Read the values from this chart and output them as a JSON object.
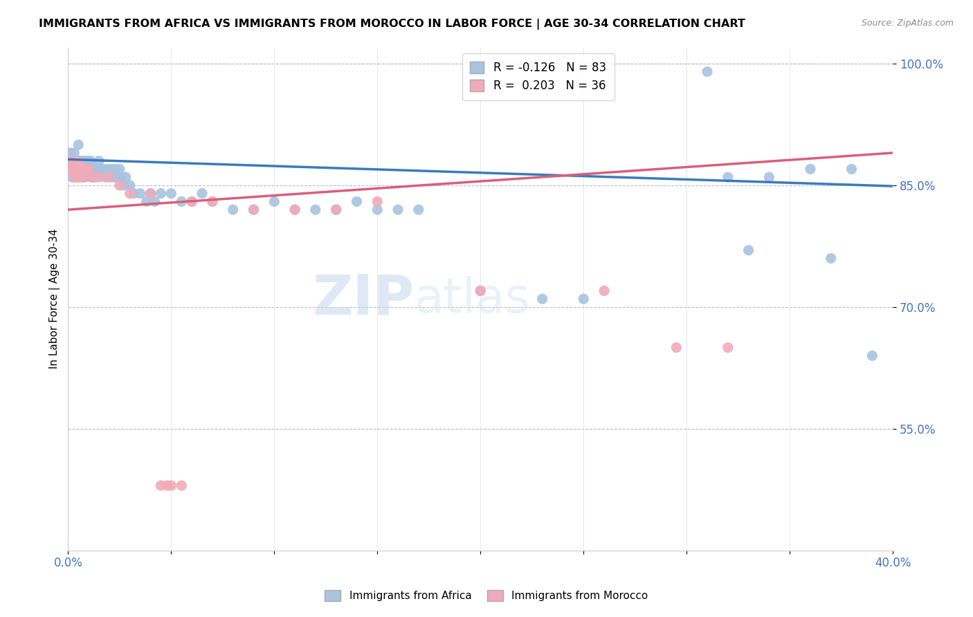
{
  "title": "IMMIGRANTS FROM AFRICA VS IMMIGRANTS FROM MOROCCO IN LABOR FORCE | AGE 30-34 CORRELATION CHART",
  "source": "Source: ZipAtlas.com",
  "ylabel": "In Labor Force | Age 30-34",
  "xlim": [
    0.0,
    0.4
  ],
  "ylim": [
    0.4,
    1.02
  ],
  "xtick_positions": [
    0.0,
    0.05,
    0.1,
    0.15,
    0.2,
    0.25,
    0.3,
    0.35,
    0.4
  ],
  "xticklabels": [
    "0.0%",
    "",
    "",
    "",
    "",
    "",
    "",
    "",
    "40.0%"
  ],
  "ytick_positions": [
    0.55,
    0.7,
    0.85,
    1.0
  ],
  "yticklabels": [
    "55.0%",
    "70.0%",
    "85.0%",
    "100.0%"
  ],
  "blue_color": "#a8c4e0",
  "pink_color": "#f2aab8",
  "blue_line_color": "#3a7abf",
  "pink_line_color": "#d95f7a",
  "legend_blue_label": "R = -0.126   N = 83",
  "legend_pink_label": "R =  0.203   N = 36",
  "watermark": "ZIPatlas",
  "africa_line": [
    0.0,
    0.4,
    0.882,
    0.849
  ],
  "morocco_line": [
    0.0,
    0.4,
    0.82,
    0.89
  ],
  "africa_x": [
    0.001,
    0.001,
    0.002,
    0.002,
    0.002,
    0.003,
    0.003,
    0.003,
    0.004,
    0.004,
    0.004,
    0.005,
    0.005,
    0.005,
    0.005,
    0.006,
    0.006,
    0.006,
    0.007,
    0.007,
    0.007,
    0.008,
    0.008,
    0.008,
    0.009,
    0.009,
    0.01,
    0.01,
    0.011,
    0.011,
    0.012,
    0.012,
    0.013,
    0.013,
    0.014,
    0.015,
    0.015,
    0.016,
    0.017,
    0.018,
    0.019,
    0.02,
    0.021,
    0.022,
    0.023,
    0.024,
    0.025,
    0.026,
    0.027,
    0.028,
    0.03,
    0.032,
    0.035,
    0.038,
    0.04,
    0.042,
    0.045,
    0.05,
    0.055,
    0.06,
    0.065,
    0.07,
    0.08,
    0.09,
    0.1,
    0.11,
    0.12,
    0.13,
    0.14,
    0.15,
    0.16,
    0.17,
    0.2,
    0.23,
    0.25,
    0.31,
    0.32,
    0.33,
    0.34,
    0.36,
    0.37,
    0.38,
    0.39
  ],
  "africa_y": [
    0.89,
    0.87,
    0.88,
    0.87,
    0.86,
    0.89,
    0.88,
    0.87,
    0.88,
    0.87,
    0.86,
    0.9,
    0.88,
    0.87,
    0.86,
    0.88,
    0.87,
    0.86,
    0.88,
    0.87,
    0.86,
    0.88,
    0.87,
    0.86,
    0.88,
    0.87,
    0.88,
    0.87,
    0.88,
    0.86,
    0.87,
    0.86,
    0.87,
    0.86,
    0.87,
    0.88,
    0.87,
    0.87,
    0.87,
    0.86,
    0.87,
    0.86,
    0.87,
    0.86,
    0.87,
    0.86,
    0.87,
    0.86,
    0.85,
    0.86,
    0.85,
    0.84,
    0.84,
    0.83,
    0.84,
    0.83,
    0.84,
    0.84,
    0.83,
    0.83,
    0.84,
    0.83,
    0.82,
    0.82,
    0.83,
    0.82,
    0.82,
    0.82,
    0.83,
    0.82,
    0.82,
    0.82,
    0.72,
    0.71,
    0.71,
    0.99,
    0.86,
    0.77,
    0.86,
    0.87,
    0.76,
    0.87,
    0.64
  ],
  "morocco_x": [
    0.001,
    0.001,
    0.002,
    0.002,
    0.003,
    0.003,
    0.004,
    0.004,
    0.005,
    0.005,
    0.006,
    0.006,
    0.007,
    0.008,
    0.009,
    0.01,
    0.012,
    0.015,
    0.02,
    0.025,
    0.03,
    0.04,
    0.06,
    0.07,
    0.09,
    0.11,
    0.13,
    0.15,
    0.2,
    0.26,
    0.295,
    0.32,
    0.045,
    0.048,
    0.05,
    0.055
  ],
  "morocco_y": [
    0.88,
    0.87,
    0.88,
    0.87,
    0.87,
    0.86,
    0.87,
    0.86,
    0.88,
    0.87,
    0.87,
    0.86,
    0.87,
    0.86,
    0.87,
    0.87,
    0.86,
    0.86,
    0.86,
    0.85,
    0.84,
    0.84,
    0.83,
    0.83,
    0.82,
    0.82,
    0.82,
    0.83,
    0.72,
    0.72,
    0.65,
    0.65,
    0.48,
    0.48,
    0.48,
    0.48
  ]
}
